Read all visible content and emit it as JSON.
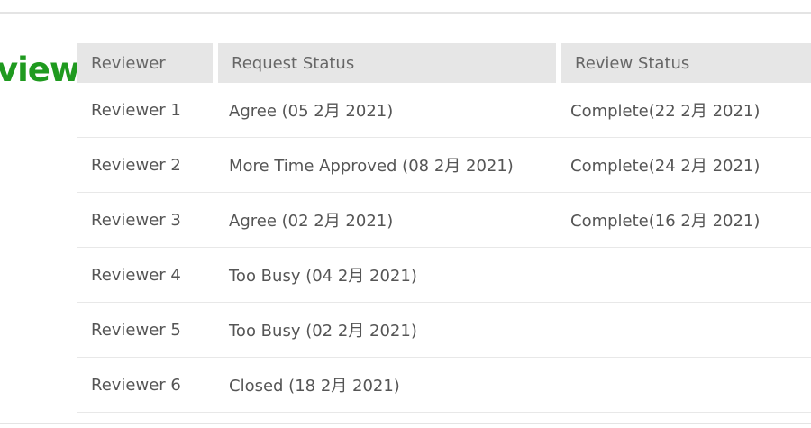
{
  "section_title": "view",
  "table": {
    "headers": [
      "Reviewer",
      "Request Status",
      "Review Status"
    ],
    "rows": [
      [
        "Reviewer 1",
        "Agree (05 2月 2021)",
        "Complete(22 2月 2021)"
      ],
      [
        "Reviewer 2",
        "More Time Approved (08 2月 2021)",
        "Complete(24 2月 2021)"
      ],
      [
        "Reviewer 3",
        "Agree (02 2月 2021)",
        "Complete(16 2月 2021)"
      ],
      [
        "Reviewer 4",
        "Too Busy (04 2月 2021)",
        ""
      ],
      [
        "Reviewer 5",
        "Too Busy (02 2月 2021)",
        ""
      ],
      [
        "Reviewer 6",
        "Closed (18 2月 2021)",
        ""
      ]
    ]
  },
  "colors": {
    "title": "#1f9a1f",
    "header_bg": "#e6e6e6"
  }
}
